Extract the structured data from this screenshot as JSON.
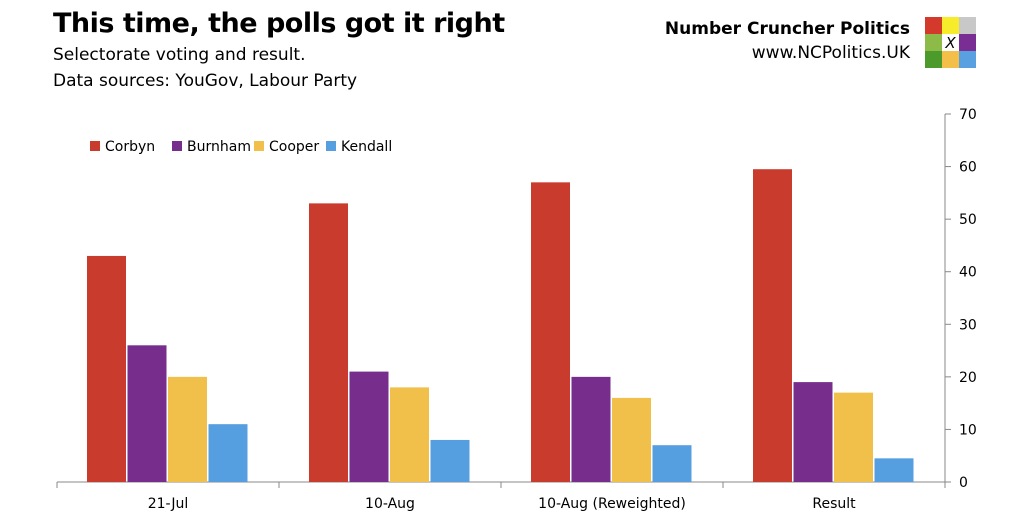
{
  "header": {
    "title": "This time, the polls got it right",
    "subtitle": "Selectorate voting and result.",
    "sources": "Data sources: YouGov, Labour Party",
    "brand": "Number Cruncher Politics",
    "url": "www.NCPolitics.UK",
    "logo_mark": "X",
    "logo_colors": [
      "#d33a2c",
      "#f6ec2a",
      "#c8c8c8",
      "#8dbb48",
      "#ffffff",
      "#7a2d93",
      "#4d9a2c",
      "#f3bf48",
      "#58a0e0"
    ]
  },
  "chart_data": {
    "type": "bar",
    "categories": [
      "21-Jul",
      "10-Aug",
      "10-Aug (Reweighted)",
      "Result"
    ],
    "series": [
      {
        "name": "Corbyn",
        "color": "#c93c2d",
        "values": [
          43,
          53,
          57,
          59.5
        ]
      },
      {
        "name": "Burnham",
        "color": "#772d8b",
        "values": [
          26,
          21,
          20,
          19
        ]
      },
      {
        "name": "Cooper",
        "color": "#f1c04a",
        "values": [
          20,
          18,
          16,
          17
        ]
      },
      {
        "name": "Kendall",
        "color": "#559fe0",
        "values": [
          11,
          8,
          7,
          4.5
        ]
      }
    ],
    "ylim": [
      0,
      70
    ],
    "yticks": [
      0,
      10,
      20,
      30,
      40,
      50,
      60,
      70
    ],
    "y_axis_side": "right",
    "grid": false,
    "legend": "top-left"
  }
}
